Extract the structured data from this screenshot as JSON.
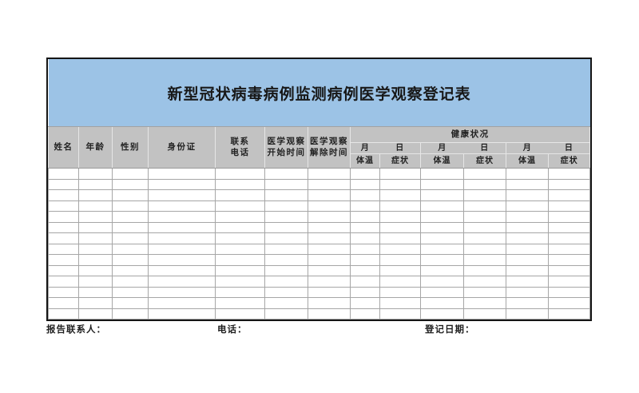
{
  "title": "新型冠状病毒病例监测病例医学观察登记表",
  "colors": {
    "title_band": "#9CC3E6",
    "header_bg": "#C2C2C2",
    "grid_line": "#A6A6A6",
    "outer_border": "#151515"
  },
  "table": {
    "headers": {
      "name": "姓名",
      "age": "年龄",
      "gender": "性别",
      "id_card": "身份证",
      "contact_phone": "联系\n电话",
      "obs_start": "医学观察\n开始时间",
      "obs_end": "医学观察\n解除时间",
      "health_status": "健康状况",
      "month": "月",
      "day": "日",
      "temperature": "体温",
      "symptoms": "症状"
    },
    "health_group_count": 3,
    "body_row_count": 14,
    "column_count": 13
  },
  "footer": {
    "report_contact": "报告联系人：",
    "phone": "电话：",
    "registration_date": "登记日期："
  }
}
